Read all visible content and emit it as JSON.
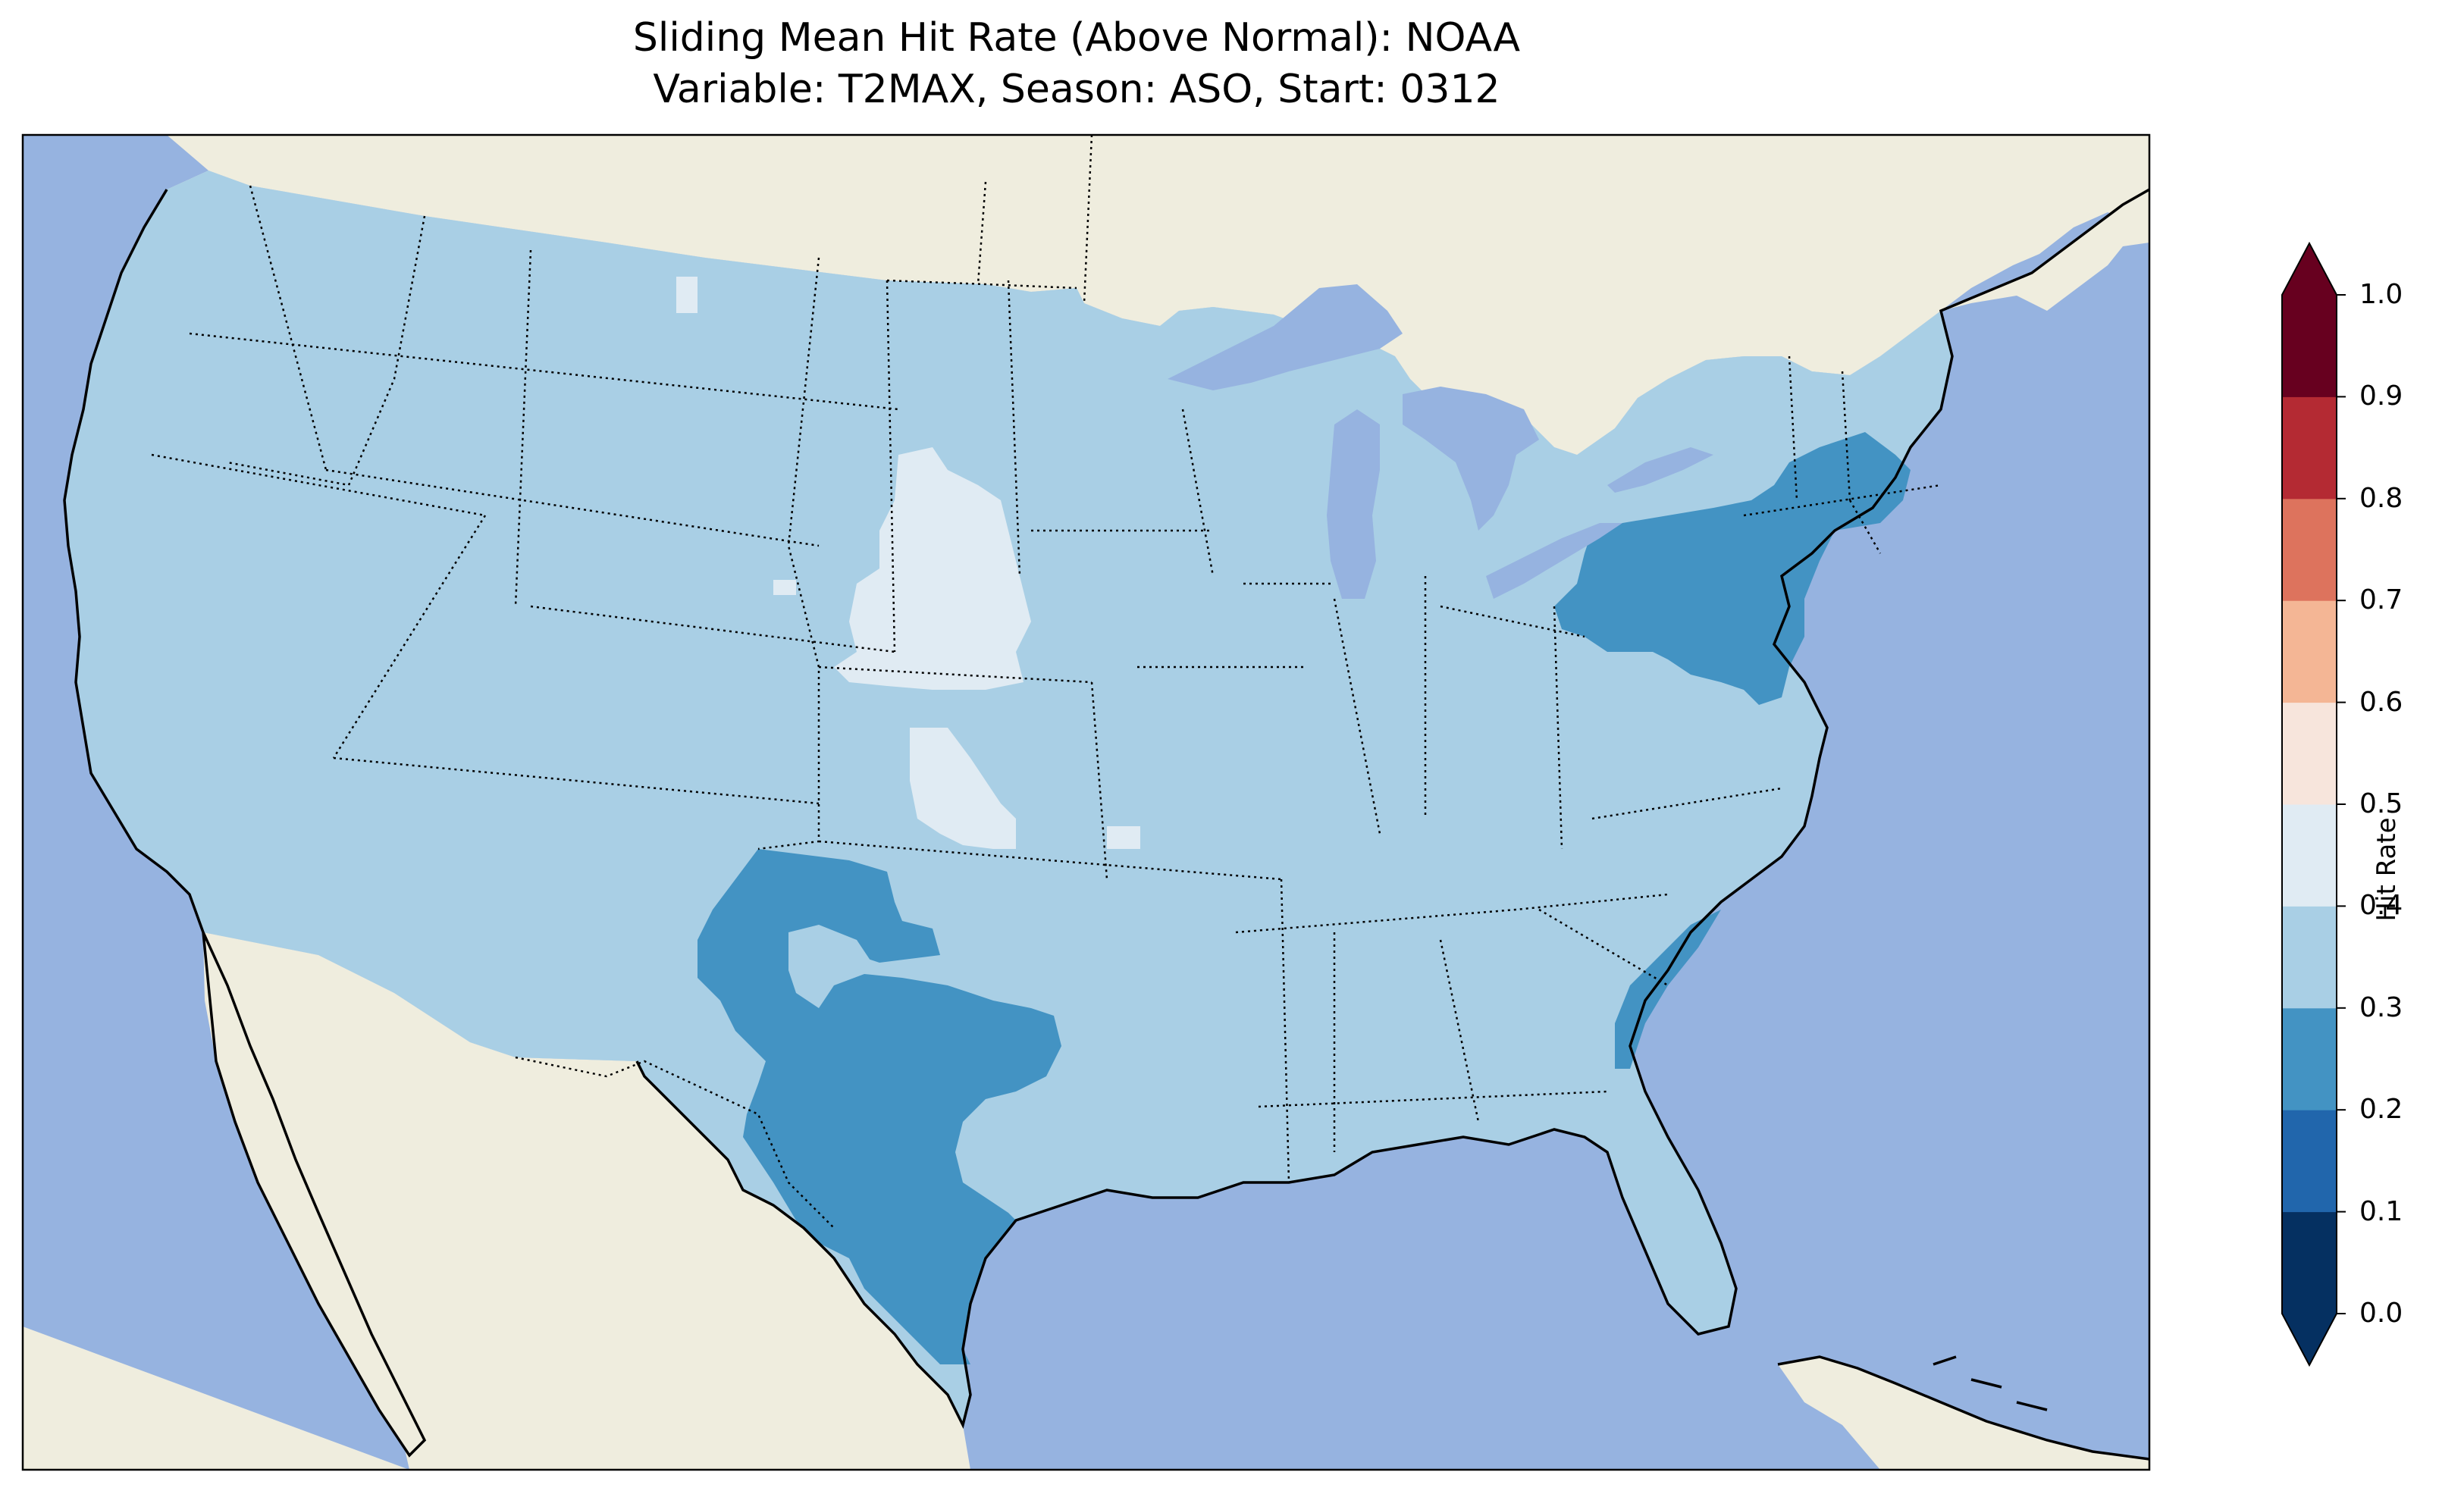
{
  "title": {
    "line1": "Sliding Mean Hit Rate (Above Normal): NOAA",
    "line2": "Variable: T2MAX, Season: ASO, Start: 0312"
  },
  "map": {
    "region": "Contiguous United States",
    "projection": "PlateCarree",
    "land_color": "#efedde",
    "ocean_color": "#96b3e0",
    "lake_color": "#96b3e0",
    "coastline_style": "solid black",
    "border_style": "dotted black",
    "dominant_value_bin": "0.3-0.4",
    "regions_by_bin": {
      "0.2-0.3": [
        "Texas",
        "eastern New Mexico",
        "Pennsylvania",
        "New Jersey",
        "southern New England",
        "Maryland",
        "coastal South Carolina"
      ],
      "0.3-0.4": [
        "most of CONUS"
      ],
      "0.4-0.5": [
        "western Nebraska",
        "southern South Dakota",
        "western Kansas"
      ]
    }
  },
  "colorbar": {
    "label": "Hit Rate",
    "ticks": [
      "0.0",
      "0.1",
      "0.2",
      "0.3",
      "0.4",
      "0.5",
      "0.6",
      "0.7",
      "0.8",
      "0.9",
      "1.0"
    ],
    "bins": [
      {
        "range": [
          0.0,
          0.1
        ],
        "color": "#053061"
      },
      {
        "range": [
          0.1,
          0.2
        ],
        "color": "#2166ac"
      },
      {
        "range": [
          0.2,
          0.3
        ],
        "color": "#4393c3"
      },
      {
        "range": [
          0.3,
          0.4
        ],
        "color": "#a9cfe5"
      },
      {
        "range": [
          0.4,
          0.5
        ],
        "color": "#e0ebf3"
      },
      {
        "range": [
          0.5,
          0.6
        ],
        "color": "#f7e5dc"
      },
      {
        "range": [
          0.6,
          0.7
        ],
        "color": "#f4b695"
      },
      {
        "range": [
          0.7,
          0.8
        ],
        "color": "#dd735d"
      },
      {
        "range": [
          0.8,
          0.9
        ],
        "color": "#b42a33"
      },
      {
        "range": [
          0.9,
          1.0
        ],
        "color": "#67001f"
      }
    ],
    "extend": "both",
    "under_color": "#053061",
    "over_color": "#67001f"
  }
}
